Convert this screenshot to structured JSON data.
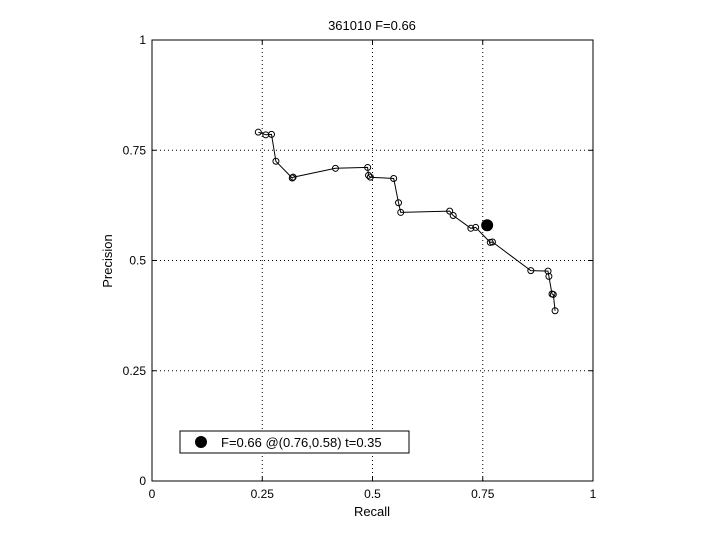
{
  "chart_data": {
    "type": "line",
    "title": "361010 F=0.66",
    "xlabel": "Recall",
    "ylabel": "Precision",
    "xlim": [
      0,
      1
    ],
    "ylim": [
      0,
      1
    ],
    "xticks": [
      0,
      0.25,
      0.5,
      0.75,
      1
    ],
    "xtick_labels": [
      "0",
      "0.25",
      "0.5",
      "0.75",
      "1"
    ],
    "yticks": [
      0,
      0.25,
      0.5,
      0.75,
      1
    ],
    "ytick_labels": [
      "0",
      "0.25",
      "0.5",
      "0.75",
      "1"
    ],
    "grid": true,
    "grid_style": "dotted",
    "series": [
      {
        "marker": "open-circle",
        "points": [
          [
            0.241,
            0.791
          ],
          [
            0.258,
            0.785
          ],
          [
            0.271,
            0.786
          ],
          [
            0.281,
            0.725
          ],
          [
            0.318,
            0.687
          ],
          [
            0.32,
            0.689
          ],
          [
            0.416,
            0.709
          ],
          [
            0.489,
            0.711
          ],
          [
            0.491,
            0.693
          ],
          [
            0.495,
            0.689
          ],
          [
            0.548,
            0.686
          ],
          [
            0.559,
            0.631
          ],
          [
            0.564,
            0.609
          ],
          [
            0.675,
            0.612
          ],
          [
            0.683,
            0.602
          ],
          [
            0.723,
            0.573
          ],
          [
            0.734,
            0.575
          ],
          [
            0.767,
            0.541
          ],
          [
            0.772,
            0.542
          ],
          [
            0.859,
            0.477
          ],
          [
            0.898,
            0.476
          ],
          [
            0.9,
            0.464
          ],
          [
            0.907,
            0.424
          ],
          [
            0.91,
            0.423
          ],
          [
            0.914,
            0.386
          ]
        ]
      }
    ],
    "best_point": {
      "recall": 0.76,
      "precision": 0.58,
      "marker": "filled-circle"
    },
    "legend": {
      "placement": "bottom-left",
      "entries": [
        {
          "label": "F=0.66 @(0.76,0.58) t=0.35",
          "marker": "filled-circle"
        }
      ]
    }
  }
}
